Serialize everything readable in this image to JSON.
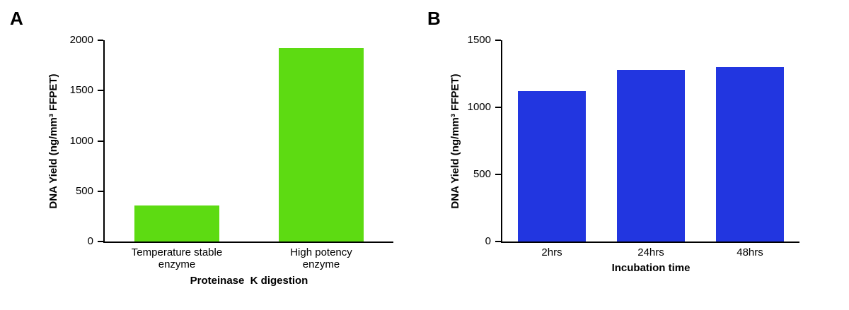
{
  "figure": {
    "panels": [
      {
        "label": "A"
      },
      {
        "label": "B"
      }
    ]
  },
  "chart_data": [
    {
      "type": "bar",
      "panel": "A",
      "categories": [
        "Temperature stable\nenzyme",
        "High potency\nenzyme"
      ],
      "values": [
        360,
        1920
      ],
      "xlabel": "Proteinase  K digestion",
      "ylabel": "DNA Yield (ng/mm³ FFPET)",
      "ylim": [
        0,
        2000
      ],
      "yticks": [
        0,
        500,
        1000,
        1500,
        2000
      ],
      "bar_color": "#5ddb12",
      "grid": false,
      "legend": "none"
    },
    {
      "type": "bar",
      "panel": "B",
      "categories": [
        "2hrs",
        "24hrs",
        "48hrs"
      ],
      "values": [
        1120,
        1280,
        1300
      ],
      "xlabel": "Incubation time",
      "ylabel": "DNA Yield (ng/mm³ FFPET)",
      "ylim": [
        0,
        1500
      ],
      "yticks": [
        0,
        500,
        1000,
        1500
      ],
      "bar_color": "#2236e0",
      "grid": false,
      "legend": "none"
    }
  ]
}
